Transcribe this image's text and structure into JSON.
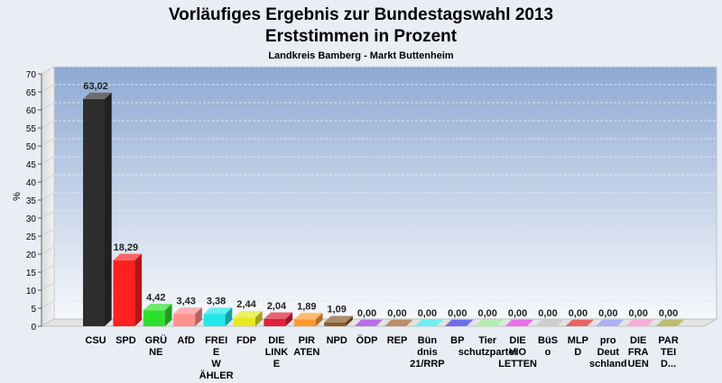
{
  "chart_data": {
    "type": "bar",
    "title": "Vorläufiges Ergebnis zur Bundestagswahl 2013",
    "subtitle": "Erststimmen in Prozent",
    "caption": "Landkreis Bamberg - Markt Buttenheim",
    "ylabel": "%",
    "xlabel": "",
    "ylim": [
      0,
      70
    ],
    "yticks": [
      0,
      5,
      10,
      15,
      20,
      25,
      30,
      35,
      40,
      45,
      50,
      55,
      60,
      65,
      70
    ],
    "grid": true,
    "legend": "none",
    "categories": [
      "CSU",
      "SPD",
      "GRÜ NE",
      "AfD",
      "FREI E W ÄHLER",
      "FDP",
      "DIE LINK E",
      "PIR ATEN",
      "NPD",
      "ÖDP",
      "REP",
      "Bün dnis 21/RRP",
      "BP",
      "Tier schutzpartei",
      "DIE VIO LETTEN",
      "BüS o",
      "MLP D",
      "pro Deut schland",
      "DIE FRA UEN",
      "PAR TEI D..."
    ],
    "values": [
      63.02,
      18.29,
      4.42,
      3.43,
      3.38,
      2.44,
      2.04,
      1.89,
      1.09,
      0.0,
      0.0,
      0.0,
      0.0,
      0.0,
      0.0,
      0.0,
      0.0,
      0.0,
      0.0,
      0.0
    ],
    "value_labels": [
      "63,02",
      "18,29",
      "4,42",
      "3,43",
      "3,38",
      "2,44",
      "2,04",
      "1,89",
      "1,09",
      "0,00",
      "0,00",
      "0,00",
      "0,00",
      "0,00",
      "0,00",
      "0,00",
      "0,00",
      "0,00",
      "0,00",
      "0,00"
    ],
    "colors": [
      "#2e2e2e",
      "#ff2020",
      "#2ee02e",
      "#ff9090",
      "#20e8e8",
      "#e8e820",
      "#e0203a",
      "#ff9a30",
      "#8a5a2a",
      "#9a30e0",
      "#a05a2a",
      "#30e8e8",
      "#3030e0",
      "#90e890",
      "#e030e0",
      "#b8b8b8",
      "#e02020",
      "#8c8cf0",
      "#f08cc8",
      "#a0a030"
    ]
  }
}
